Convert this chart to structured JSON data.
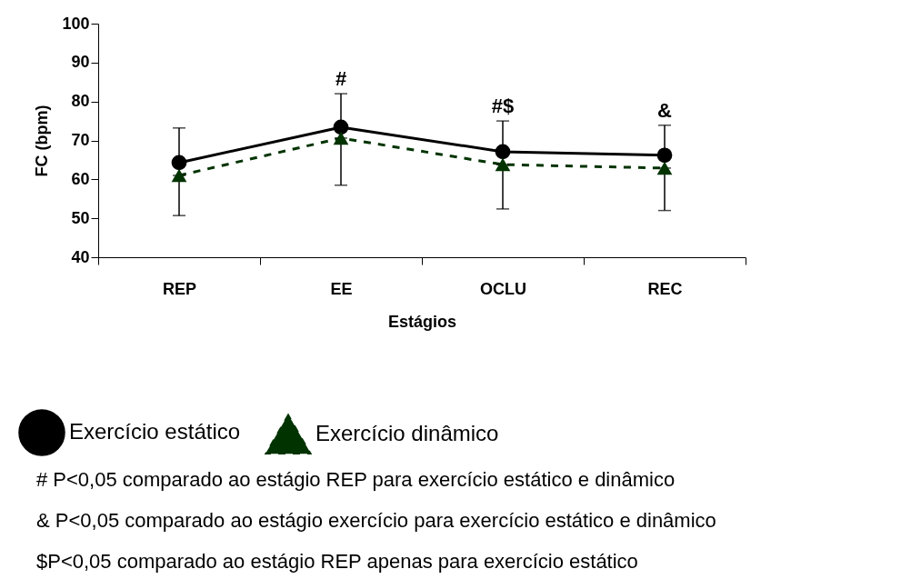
{
  "chart_data": {
    "type": "line",
    "xlabel": "Estágios",
    "ylabel": "FC (bpm)",
    "categories": [
      "REP",
      "EE",
      "OCLU",
      "REC"
    ],
    "series": [
      {
        "name": "Exercício estático",
        "color": "#000000",
        "marker": "circle",
        "line_style": "solid",
        "values": [
          64.3,
          73.4,
          67.1,
          66.2
        ],
        "errors": [
          [
            64.3,
            73.2
          ],
          [
            73.4,
            82
          ],
          [
            67.1,
            75
          ],
          [
            66.2,
            73.9
          ]
        ]
      },
      {
        "name": "Exercício dinâmico",
        "color": "#003300",
        "marker": "triangle",
        "line_style": "dashed",
        "values": [
          61,
          70.6,
          63.8,
          62.9
        ],
        "errors": [
          [
            50.7,
            61
          ],
          [
            58.5,
            70.6
          ],
          [
            52.4,
            63.8
          ],
          [
            52,
            62.9
          ]
        ]
      }
    ],
    "ylim": [
      40,
      100
    ],
    "yticks": [
      40,
      50,
      60,
      70,
      80,
      90,
      100
    ],
    "grid": false,
    "legend": "bottom",
    "annotations": [
      {
        "text": "#",
        "x": "EE",
        "y": 82
      },
      {
        "text": "#$",
        "x": "OCLU",
        "y": 75
      },
      {
        "text": "&",
        "x": "REC",
        "y": 73.9
      },
      "# P<0,05 comparado ao estágio REP para exercício estático e dinâmico",
      "& P<0,05 comparado ao estágio exercício para exercício estático e dinâmico",
      "$P<0,05 comparado ao estágio REP apenas para exercício estático"
    ]
  }
}
